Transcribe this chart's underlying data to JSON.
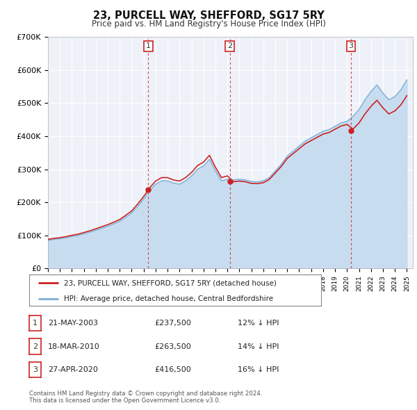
{
  "title": "23, PURCELL WAY, SHEFFORD, SG17 5RY",
  "subtitle": "Price paid vs. HM Land Registry's House Price Index (HPI)",
  "ylim": [
    0,
    700000
  ],
  "yticks": [
    0,
    100000,
    200000,
    300000,
    400000,
    500000,
    600000,
    700000
  ],
  "ytick_labels": [
    "£0",
    "£100K",
    "£200K",
    "£300K",
    "£400K",
    "£500K",
    "£600K",
    "£700K"
  ],
  "xlim_start": 1995.0,
  "xlim_end": 2025.5,
  "background_color": "#ffffff",
  "plot_bg_color": "#eef2f8",
  "grid_color": "#ffffff",
  "sale_color": "#cc2222",
  "hpi_color": "#7aaed6",
  "hpi_fill_color": "#c8dcf0",
  "transactions": [
    {
      "num": 1,
      "date_str": "21-MAY-2003",
      "date_x": 2003.38,
      "price": 237500,
      "pct": "12%"
    },
    {
      "num": 2,
      "date_str": "18-MAR-2010",
      "date_x": 2010.21,
      "price": 263500,
      "pct": "14%"
    },
    {
      "num": 3,
      "date_str": "27-APR-2020",
      "date_x": 2020.32,
      "price": 416500,
      "pct": "16%"
    }
  ],
  "legend_label_sale": "23, PURCELL WAY, SHEFFORD, SG17 5RY (detached house)",
  "legend_label_hpi": "HPI: Average price, detached house, Central Bedfordshire",
  "footer1": "Contains HM Land Registry data © Crown copyright and database right 2024.",
  "footer2": "This data is licensed under the Open Government Licence v3.0.",
  "hpi_data": {
    "years": [
      1995.0,
      1995.5,
      1996.0,
      1996.5,
      1997.0,
      1997.5,
      1998.0,
      1998.5,
      1999.0,
      1999.5,
      2000.0,
      2000.5,
      2001.0,
      2001.5,
      2002.0,
      2002.5,
      2003.0,
      2003.5,
      2004.0,
      2004.5,
      2005.0,
      2005.5,
      2006.0,
      2006.5,
      2007.0,
      2007.5,
      2008.0,
      2008.5,
      2009.0,
      2009.5,
      2010.0,
      2010.5,
      2011.0,
      2011.5,
      2012.0,
      2012.5,
      2013.0,
      2013.5,
      2014.0,
      2014.5,
      2015.0,
      2015.5,
      2016.0,
      2016.5,
      2017.0,
      2017.5,
      2018.0,
      2018.5,
      2019.0,
      2019.5,
      2020.0,
      2020.5,
      2021.0,
      2021.5,
      2022.0,
      2022.5,
      2023.0,
      2023.5,
      2024.0,
      2024.5,
      2025.0
    ],
    "values": [
      85000,
      88000,
      90000,
      93000,
      97000,
      100000,
      105000,
      110000,
      116000,
      122000,
      128000,
      135000,
      143000,
      155000,
      168000,
      188000,
      210000,
      235000,
      255000,
      265000,
      265000,
      258000,
      255000,
      265000,
      280000,
      300000,
      310000,
      330000,
      295000,
      265000,
      270000,
      268000,
      270000,
      268000,
      263000,
      262000,
      265000,
      275000,
      295000,
      315000,
      340000,
      355000,
      370000,
      385000,
      395000,
      405000,
      415000,
      420000,
      430000,
      440000,
      445000,
      460000,
      480000,
      510000,
      535000,
      555000,
      530000,
      510000,
      520000,
      540000,
      570000
    ]
  }
}
